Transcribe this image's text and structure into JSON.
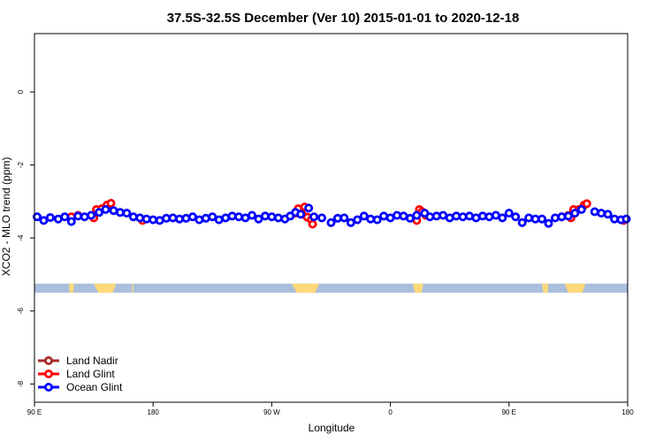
{
  "chart_data": {
    "type": "scatter",
    "title": "37.5S-32.5S December (Ver 10)   2015-01-01 to 2020-12-18",
    "xlabel": "Longitude",
    "ylabel": "XCO2 - MLO trend (ppm)",
    "xlim": [
      90,
      540
    ],
    "ylim": [
      -8.5,
      1.6
    ],
    "xticks": [
      {
        "value": 90,
        "label": "90 E"
      },
      {
        "value": 180,
        "label": "180"
      },
      {
        "value": 270,
        "label": "90 W"
      },
      {
        "value": 360,
        "label": "0"
      },
      {
        "value": 450,
        "label": "90 E"
      },
      {
        "value": 540,
        "label": "180"
      }
    ],
    "yticks": [
      0,
      -2,
      -4,
      -6,
      -8
    ],
    "map_strip": {
      "lat_range": "37.5S-32.5S",
      "y_top": -5.25,
      "y_bottom": -5.5,
      "ocean_color": "#a9bfdc",
      "land_color": "#ffd87a"
    },
    "land_segments": [
      [
        116,
        120
      ],
      [
        135,
        152
      ],
      [
        164,
        165
      ],
      [
        285,
        306
      ],
      [
        377,
        385
      ],
      [
        475,
        480
      ],
      [
        492,
        508
      ]
    ],
    "series": [
      {
        "name": "Land Nadir",
        "color": "#a52a2a",
        "points": []
      },
      {
        "name": "Land Glint",
        "color": "#ff0000",
        "points": [
          [
            118,
            -3.42
          ],
          [
            123,
            -3.38
          ],
          [
            135,
            -3.45
          ],
          [
            137,
            -3.22
          ],
          [
            141,
            -3.2
          ],
          [
            145,
            -3.1
          ],
          [
            148,
            -3.05
          ],
          [
            172,
            -3.52
          ],
          [
            288,
            -3.32
          ],
          [
            290,
            -3.2
          ],
          [
            293,
            -3.35
          ],
          [
            295,
            -3.15
          ],
          [
            297,
            -3.43
          ],
          [
            300,
            -3.5
          ],
          [
            301,
            -3.62
          ],
          [
            380,
            -3.52
          ],
          [
            382,
            -3.22
          ],
          [
            384,
            -3.28
          ],
          [
            387,
            -3.38
          ],
          [
            490,
            -3.42
          ],
          [
            495,
            -3.38
          ],
          [
            497,
            -3.45
          ],
          [
            499,
            -3.22
          ],
          [
            503,
            -3.22
          ],
          [
            507,
            -3.1
          ],
          [
            509,
            -3.06
          ],
          [
            537,
            -3.52
          ]
        ]
      },
      {
        "name": "Ocean Glint",
        "color": "#0000ff",
        "points": [
          [
            92,
            -3.42
          ],
          [
            97,
            -3.52
          ],
          [
            102,
            -3.44
          ],
          [
            108,
            -3.48
          ],
          [
            113,
            -3.42
          ],
          [
            118,
            -3.55
          ],
          [
            123,
            -3.4
          ],
          [
            128,
            -3.42
          ],
          [
            133,
            -3.38
          ],
          [
            139,
            -3.3
          ],
          [
            144,
            -3.22
          ],
          [
            150,
            -3.25
          ],
          [
            155,
            -3.3
          ],
          [
            160,
            -3.32
          ],
          [
            165,
            -3.42
          ],
          [
            170,
            -3.45
          ],
          [
            175,
            -3.48
          ],
          [
            180,
            -3.5
          ],
          [
            185,
            -3.52
          ],
          [
            190,
            -3.46
          ],
          [
            195,
            -3.45
          ],
          [
            200,
            -3.48
          ],
          [
            205,
            -3.46
          ],
          [
            210,
            -3.42
          ],
          [
            215,
            -3.5
          ],
          [
            220,
            -3.46
          ],
          [
            225,
            -3.42
          ],
          [
            230,
            -3.5
          ],
          [
            235,
            -3.45
          ],
          [
            240,
            -3.4
          ],
          [
            245,
            -3.42
          ],
          [
            250,
            -3.45
          ],
          [
            255,
            -3.38
          ],
          [
            260,
            -3.48
          ],
          [
            265,
            -3.4
          ],
          [
            270,
            -3.42
          ],
          [
            275,
            -3.45
          ],
          [
            280,
            -3.48
          ],
          [
            284,
            -3.4
          ],
          [
            288,
            -3.3
          ],
          [
            292,
            -3.35
          ],
          [
            298,
            -3.18
          ],
          [
            302,
            -3.42
          ],
          [
            308,
            -3.45
          ],
          [
            315,
            -3.58
          ],
          [
            320,
            -3.46
          ],
          [
            325,
            -3.45
          ],
          [
            330,
            -3.58
          ],
          [
            335,
            -3.5
          ],
          [
            340,
            -3.4
          ],
          [
            345,
            -3.48
          ],
          [
            350,
            -3.5
          ],
          [
            355,
            -3.4
          ],
          [
            360,
            -3.45
          ],
          [
            365,
            -3.38
          ],
          [
            370,
            -3.4
          ],
          [
            375,
            -3.46
          ],
          [
            380,
            -3.38
          ],
          [
            386,
            -3.32
          ],
          [
            390,
            -3.42
          ],
          [
            395,
            -3.4
          ],
          [
            400,
            -3.38
          ],
          [
            405,
            -3.45
          ],
          [
            410,
            -3.4
          ],
          [
            415,
            -3.42
          ],
          [
            420,
            -3.4
          ],
          [
            425,
            -3.45
          ],
          [
            430,
            -3.4
          ],
          [
            435,
            -3.42
          ],
          [
            440,
            -3.38
          ],
          [
            445,
            -3.45
          ],
          [
            450,
            -3.32
          ],
          [
            455,
            -3.42
          ],
          [
            460,
            -3.58
          ],
          [
            465,
            -3.45
          ],
          [
            470,
            -3.48
          ],
          [
            475,
            -3.48
          ],
          [
            480,
            -3.6
          ],
          [
            485,
            -3.45
          ],
          [
            490,
            -3.42
          ],
          [
            495,
            -3.4
          ],
          [
            500,
            -3.32
          ],
          [
            505,
            -3.22
          ],
          [
            515,
            -3.28
          ],
          [
            520,
            -3.32
          ],
          [
            525,
            -3.35
          ],
          [
            530,
            -3.48
          ],
          [
            535,
            -3.5
          ],
          [
            539,
            -3.48
          ]
        ]
      }
    ],
    "legend": {
      "position": "bottom-left"
    }
  }
}
